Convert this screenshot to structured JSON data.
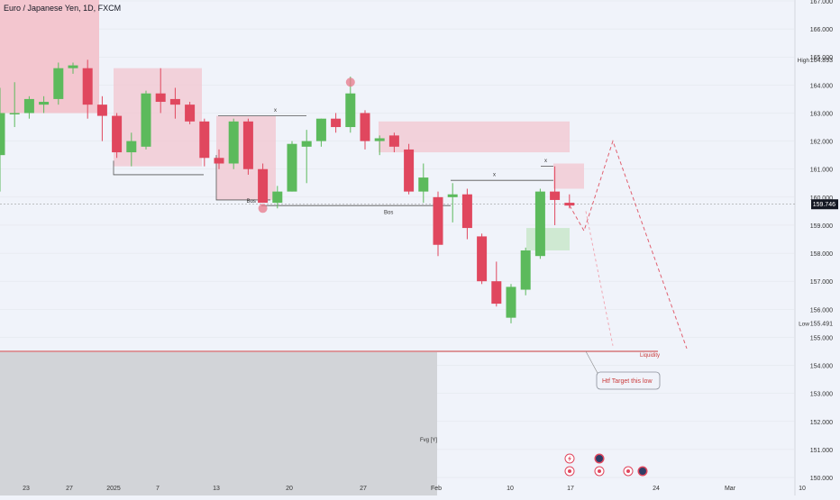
{
  "title": "Euro / Japanese Yen, 1D, FXCM",
  "colors": {
    "up": "#5cba5c",
    "down": "#e0475e",
    "zone_red": "#f3c6cf",
    "zone_green": "#cfe9d2",
    "fvg": "#d2d4d8",
    "line": "#555555",
    "liquidity": "#c93a3a",
    "grid": "#e1e4ea",
    "background": "#f0f3fa"
  },
  "labels": {
    "high": "High",
    "low": "Low",
    "current_price": "159.746",
    "liquidity": "Liquidity",
    "htf_note": "Htf Target this low",
    "fvg": "Fvg [Y]",
    "bos": [
      "Bos",
      "Bos"
    ],
    "x": [
      "x",
      "x",
      "x"
    ]
  },
  "icons": [
    "lightning-icon",
    "target-icon",
    "target-icon",
    "target-icon",
    "target-icon",
    "avatar-icon",
    "avatar-icon"
  ],
  "chart_data": {
    "type": "candlestick",
    "title": "Euro / Japanese Yen, 1D, FXCM",
    "yaxis": {
      "range": [
        149.5,
        167.5
      ],
      "ticks": [
        "167.000",
        "166.000",
        "165.000",
        "164.000",
        "163.000",
        "162.000",
        "161.000",
        "160.000",
        "159.000",
        "158.000",
        "157.000",
        "156.000",
        "155.000",
        "154.000",
        "153.000",
        "152.000",
        "151.000",
        "150.000"
      ],
      "tick_values": [
        167,
        166,
        165,
        164,
        163,
        162,
        161,
        160,
        159,
        158,
        157,
        156,
        155,
        154,
        153,
        152,
        151,
        150
      ]
    },
    "xaxis": {
      "ticks": [
        "23",
        "27",
        "2025",
        "7",
        "13",
        "20",
        "27",
        "Feb",
        "10",
        "17",
        "24",
        "Mar",
        "10"
      ],
      "tick_dates": [
        "2024-12-23",
        "2024-12-27",
        "2025-01-01",
        "2025-01-07",
        "2025-01-13",
        "2025-01-20",
        "2025-01-27",
        "2025-02-01",
        "2025-02-10",
        "2025-02-17",
        "2025-02-24",
        "2025-03-01",
        "2025-03-10"
      ]
    },
    "high_marker": 164.893,
    "low_marker": 155.491,
    "current_price": 159.746,
    "liquidity_level": 154.5,
    "candles": [
      {
        "date": "2024-12-18",
        "o": 161.5,
        "h": 163.9,
        "l": 160.2,
        "c": 163.0
      },
      {
        "date": "2024-12-19",
        "o": 163.0,
        "h": 164.1,
        "l": 162.5,
        "c": 163.0
      },
      {
        "date": "2024-12-20",
        "o": 163.0,
        "h": 163.6,
        "l": 162.8,
        "c": 163.5
      },
      {
        "date": "2024-12-23",
        "o": 163.3,
        "h": 163.6,
        "l": 163.0,
        "c": 163.4
      },
      {
        "date": "2024-12-24",
        "o": 163.5,
        "h": 164.8,
        "l": 163.3,
        "c": 164.6
      },
      {
        "date": "2024-12-26",
        "o": 164.6,
        "h": 164.8,
        "l": 164.4,
        "c": 164.7
      },
      {
        "date": "2024-12-27",
        "o": 164.6,
        "h": 164.9,
        "l": 162.8,
        "c": 163.3
      },
      {
        "date": "2024-12-30",
        "o": 163.3,
        "h": 163.6,
        "l": 162.0,
        "c": 162.9
      },
      {
        "date": "2024-12-31",
        "o": 162.9,
        "h": 163.0,
        "l": 161.4,
        "c": 161.6
      },
      {
        "date": "2025-01-02",
        "o": 161.6,
        "h": 162.3,
        "l": 161.1,
        "c": 162.0
      },
      {
        "date": "2025-01-03",
        "o": 161.8,
        "h": 163.8,
        "l": 161.7,
        "c": 163.7
      },
      {
        "date": "2025-01-06",
        "o": 163.7,
        "h": 164.6,
        "l": 163.0,
        "c": 163.4
      },
      {
        "date": "2025-01-07",
        "o": 163.5,
        "h": 163.9,
        "l": 162.8,
        "c": 163.3
      },
      {
        "date": "2025-01-08",
        "o": 163.3,
        "h": 163.4,
        "l": 162.6,
        "c": 162.7
      },
      {
        "date": "2025-01-09",
        "o": 162.7,
        "h": 162.8,
        "l": 161.1,
        "c": 161.4
      },
      {
        "date": "2025-01-10",
        "o": 161.4,
        "h": 161.7,
        "l": 161.0,
        "c": 161.2
      },
      {
        "date": "2025-01-13",
        "o": 161.2,
        "h": 162.8,
        "l": 161.0,
        "c": 162.7
      },
      {
        "date": "2025-01-14",
        "o": 162.7,
        "h": 162.8,
        "l": 160.8,
        "c": 161.0
      },
      {
        "date": "2025-01-15",
        "o": 161.0,
        "h": 161.2,
        "l": 159.8,
        "c": 159.8
      },
      {
        "date": "2025-01-16",
        "o": 159.8,
        "h": 160.4,
        "l": 159.6,
        "c": 160.2
      },
      {
        "date": "2025-01-17",
        "o": 160.2,
        "h": 162.0,
        "l": 160.2,
        "c": 161.9
      },
      {
        "date": "2025-01-20",
        "o": 161.8,
        "h": 162.4,
        "l": 160.5,
        "c": 162.0
      },
      {
        "date": "2025-01-21",
        "o": 162.0,
        "h": 162.8,
        "l": 161.8,
        "c": 162.8
      },
      {
        "date": "2025-01-22",
        "o": 162.8,
        "h": 163.0,
        "l": 162.3,
        "c": 162.5
      },
      {
        "date": "2025-01-23",
        "o": 162.5,
        "h": 164.3,
        "l": 162.3,
        "c": 163.7
      },
      {
        "date": "2025-01-24",
        "o": 163.0,
        "h": 163.1,
        "l": 161.7,
        "c": 162.0
      },
      {
        "date": "2025-01-27",
        "o": 162.0,
        "h": 162.2,
        "l": 161.5,
        "c": 162.1
      },
      {
        "date": "2025-01-28",
        "o": 162.2,
        "h": 162.3,
        "l": 161.6,
        "c": 161.8
      },
      {
        "date": "2025-01-29",
        "o": 161.7,
        "h": 161.9,
        "l": 160.1,
        "c": 160.2
      },
      {
        "date": "2025-01-30",
        "o": 160.2,
        "h": 161.2,
        "l": 159.8,
        "c": 160.7
      },
      {
        "date": "2025-01-31",
        "o": 160.0,
        "h": 160.2,
        "l": 157.9,
        "c": 158.3
      },
      {
        "date": "2025-02-03",
        "o": 160.0,
        "h": 160.5,
        "l": 159.1,
        "c": 160.1
      },
      {
        "date": "2025-02-04",
        "o": 160.1,
        "h": 160.3,
        "l": 158.5,
        "c": 158.9
      },
      {
        "date": "2025-02-05",
        "o": 158.6,
        "h": 158.7,
        "l": 156.9,
        "c": 157.0
      },
      {
        "date": "2025-02-06",
        "o": 157.0,
        "h": 157.7,
        "l": 156.1,
        "c": 156.2
      },
      {
        "date": "2025-02-07",
        "o": 155.7,
        "h": 156.9,
        "l": 155.5,
        "c": 156.8
      },
      {
        "date": "2025-02-10",
        "o": 156.7,
        "h": 158.2,
        "l": 156.5,
        "c": 158.1
      },
      {
        "date": "2025-02-11",
        "o": 157.9,
        "h": 160.3,
        "l": 157.8,
        "c": 160.2
      },
      {
        "date": "2025-02-12",
        "o": 160.2,
        "h": 161.1,
        "l": 159.0,
        "c": 159.9
      },
      {
        "date": "2025-02-13",
        "o": 159.8,
        "h": 160.1,
        "l": 159.6,
        "c": 159.7
      }
    ]
  }
}
